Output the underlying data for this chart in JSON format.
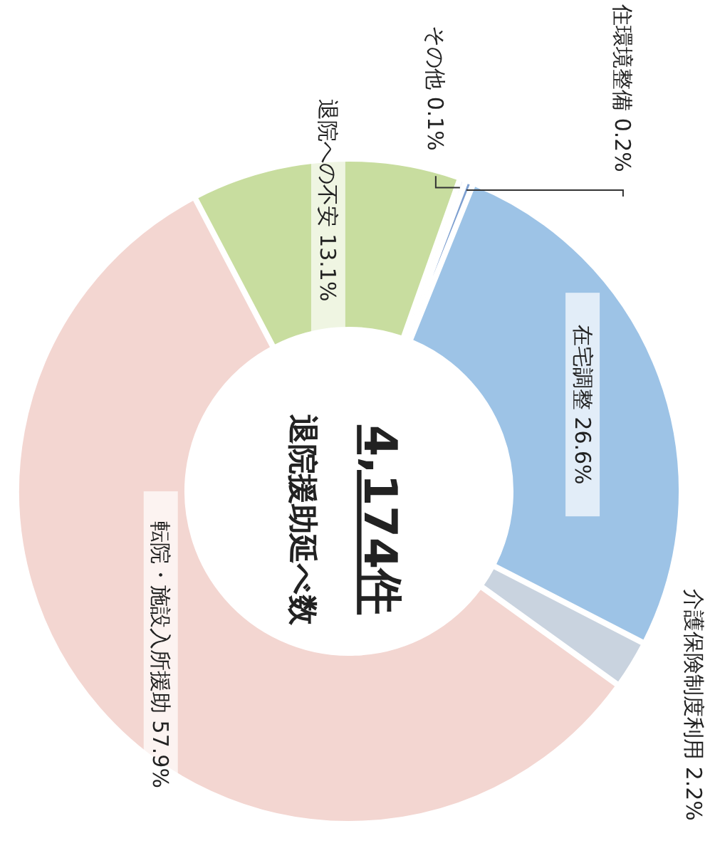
{
  "chart_data": {
    "type": "donut",
    "title": "退院援助延べ数",
    "annotations": [
      "4,174件"
    ],
    "categories": [
      "在宅調整",
      "介護保険制度利用",
      "転院・施設入所援助",
      "退院への不安",
      "その他",
      "住環境整備"
    ],
    "values": [
      26.6,
      2.2,
      57.9,
      13.1,
      0.1,
      0.2
    ],
    "colors": [
      "#9dc3e6",
      "#c9d3df",
      "#f3d6d1",
      "#c8dd9f",
      "#a9b6de",
      "#7d9fd0"
    ],
    "value_labels": [
      "26.6%",
      "2.2%",
      "57.9%",
      "13.1%",
      "0.1%",
      "0.2%"
    ]
  }
}
